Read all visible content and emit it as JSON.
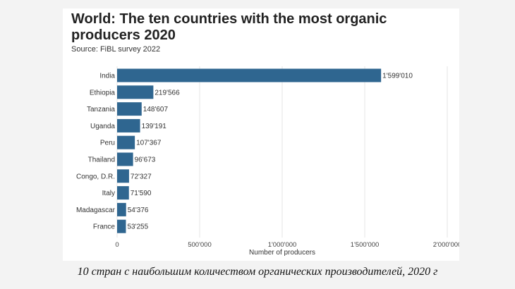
{
  "chart_data": {
    "type": "bar",
    "orientation": "horizontal",
    "title": "World: The ten countries with the most organic producers 2020",
    "subtitle": "Source: FiBL survey 2022",
    "xlabel": "Number of producers",
    "ylabel": "",
    "xlim": [
      0,
      2000000
    ],
    "x_ticks": [
      0,
      500000,
      1000000,
      1500000,
      2000000
    ],
    "x_tick_labels": [
      "0",
      "500'000",
      "1'000'000",
      "1'500'000",
      "2'000'000"
    ],
    "grid": true,
    "legend": "none",
    "bar_color": "#2f6690",
    "categories": [
      "India",
      "Ethiopia",
      "Tanzania",
      "Uganda",
      "Peru",
      "Thailand",
      "Congo, D.R.",
      "Italy",
      "Madagascar",
      "France"
    ],
    "values": [
      1599010,
      219566,
      148607,
      139191,
      107367,
      96673,
      72327,
      71590,
      54376,
      53255
    ],
    "value_labels": [
      "1'599'010",
      "219'566",
      "148'607",
      "139'191",
      "107'367",
      "96'673",
      "72'327",
      "71'590",
      "54'376",
      "53'255"
    ]
  },
  "caption": "10 стран с наибольшим количеством органических производителей, 2020 г"
}
